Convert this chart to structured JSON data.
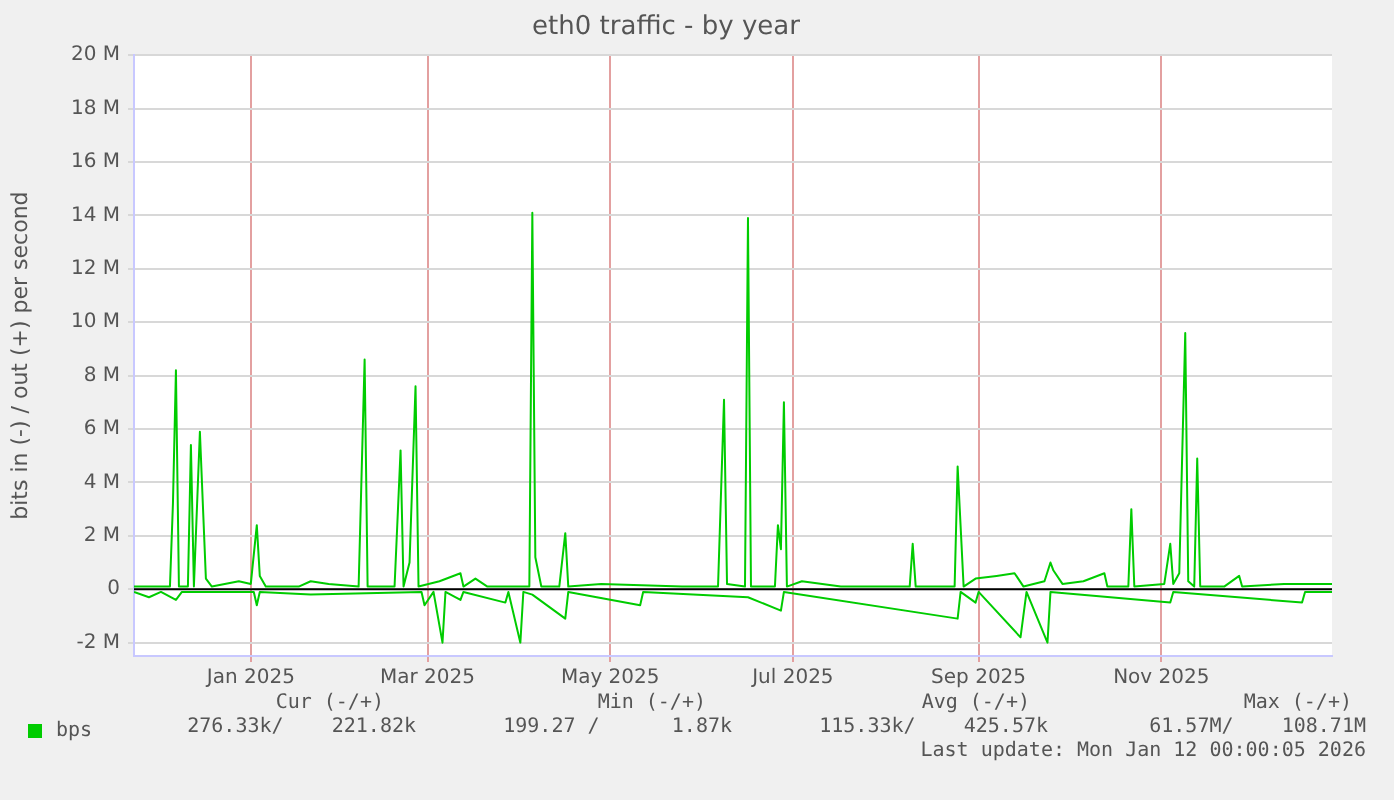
{
  "chart_data": {
    "type": "line",
    "title": "eth0 traffic - by year",
    "ylabel": "bits in (-) / out (+) per second",
    "xlim": [
      "2024-12-08",
      "2026-01-12"
    ],
    "xticks": [
      {
        "value": "2025-01-16",
        "label": "Jan 2025"
      },
      {
        "value": "2025-03-16",
        "label": "Mar 2025"
      },
      {
        "value": "2025-05-16",
        "label": "May 2025"
      },
      {
        "value": "2025-07-16",
        "label": "Jul 2025"
      },
      {
        "value": "2025-09-16",
        "label": "Sep 2025"
      },
      {
        "value": "2025-11-16",
        "label": "Nov 2025"
      }
    ],
    "ylim": [
      -2.5,
      20
    ],
    "yticks": [
      {
        "value": -2,
        "label": "-2 M"
      },
      0,
      {
        "value": 2,
        "label": "2 M"
      },
      {
        "value": 4,
        "label": "4 M"
      },
      {
        "value": 6,
        "label": "6 M"
      },
      {
        "value": 8,
        "label": "8 M"
      },
      {
        "value": 10,
        "label": "10 M"
      },
      {
        "value": 12,
        "label": "12 M"
      },
      {
        "value": 14,
        "label": "14 M"
      },
      {
        "value": 16,
        "label": "16 M"
      },
      {
        "value": 18,
        "label": "18 M"
      },
      {
        "value": 20,
        "label": "20 M"
      }
    ],
    "grid": true,
    "legend": "bottom left",
    "ref_lines": [
      {
        "axis": "y",
        "value": 0,
        "color": "#000000"
      }
    ],
    "series": [
      {
        "name": "bps",
        "color": "#00cc00",
        "x": [
          "2024-12-08",
          "2024-12-17",
          "2024-12-20",
          "2024-12-21",
          "2024-12-22",
          "2024-12-23",
          "2024-12-26",
          "2024-12-27",
          "2024-12-28",
          "2024-12-30",
          "2025-01-01",
          "2025-01-03",
          "2025-01-12",
          "2025-01-16",
          "2025-01-18",
          "2025-01-19",
          "2025-01-21",
          "2025-02-01",
          "2025-02-05",
          "2025-02-11",
          "2025-02-21",
          "2025-02-23",
          "2025-02-24",
          "2025-03-05",
          "2025-03-07",
          "2025-03-08",
          "2025-03-10",
          "2025-03-12",
          "2025-03-13",
          "2025-03-20",
          "2025-03-27",
          "2025-03-28",
          "2025-04-01",
          "2025-04-05",
          "2025-04-19",
          "2025-04-20",
          "2025-04-21",
          "2025-04-23",
          "2025-04-29",
          "2025-05-01",
          "2025-05-02",
          "2025-05-13",
          "2025-06-09",
          "2025-06-21",
          "2025-06-23",
          "2025-06-24",
          "2025-06-30",
          "2025-07-01",
          "2025-07-02",
          "2025-07-10",
          "2025-07-11",
          "2025-07-12",
          "2025-07-13",
          "2025-07-14",
          "2025-07-19",
          "2025-08-01",
          "2025-08-24",
          "2025-08-25",
          "2025-08-26",
          "2025-09-08",
          "2025-09-09",
          "2025-09-11",
          "2025-09-15",
          "2025-09-22",
          "2025-09-28",
          "2025-10-01",
          "2025-10-08",
          "2025-10-10",
          "2025-10-11",
          "2025-10-14",
          "2025-10-21",
          "2025-10-28",
          "2025-10-29",
          "2025-11-05",
          "2025-11-06",
          "2025-11-07",
          "2025-11-17",
          "2025-11-19",
          "2025-11-20",
          "2025-11-22",
          "2025-11-24",
          "2025-11-25",
          "2025-11-27",
          "2025-11-28",
          "2025-11-29",
          "2025-12-07",
          "2025-12-12",
          "2025-12-13",
          "2025-12-27",
          "2026-01-12"
        ],
        "values": [
          0.1,
          0.1,
          0.1,
          3.2,
          8.2,
          0.1,
          0.1,
          5.4,
          0.1,
          5.9,
          0.4,
          0.1,
          0.3,
          0.2,
          2.4,
          0.5,
          0.1,
          0.1,
          0.3,
          0.2,
          0.1,
          8.6,
          0.1,
          0.1,
          5.2,
          0.1,
          1.0,
          7.6,
          0.1,
          0.3,
          0.6,
          0.1,
          0.4,
          0.1,
          0.1,
          14.1,
          1.2,
          0.1,
          0.1,
          2.1,
          0.1,
          0.2,
          0.1,
          0.1,
          7.1,
          0.2,
          0.1,
          13.9,
          0.1,
          0.1,
          2.4,
          1.5,
          7.0,
          0.1,
          0.3,
          0.1,
          0.1,
          1.7,
          0.1,
          0.1,
          4.6,
          0.1,
          0.4,
          0.5,
          0.6,
          0.1,
          0.3,
          1.0,
          0.7,
          0.2,
          0.3,
          0.6,
          0.1,
          0.1,
          3.0,
          0.1,
          0.2,
          1.7,
          0.2,
          0.6,
          9.6,
          0.3,
          0.1,
          4.9,
          0.1,
          0.1,
          0.5,
          0.1,
          0.2,
          0.2
        ]
      },
      {
        "color": "#00cc00",
        "x": [
          "2024-12-08",
          "2024-12-13",
          "2024-12-17",
          "2024-12-22",
          "2024-12-24",
          "2025-01-17",
          "2025-01-18",
          "2025-01-19",
          "2025-02-05",
          "2025-03-14",
          "2025-03-15",
          "2025-03-18",
          "2025-03-21",
          "2025-03-22",
          "2025-03-27",
          "2025-03-28",
          "2025-04-11",
          "2025-04-12",
          "2025-04-16",
          "2025-04-17",
          "2025-04-20",
          "2025-05-01",
          "2025-05-02",
          "2025-05-26",
          "2025-05-27",
          "2025-07-01",
          "2025-07-12",
          "2025-07-13",
          "2025-09-09",
          "2025-09-10",
          "2025-09-15",
          "2025-09-16",
          "2025-09-30",
          "2025-10-02",
          "2025-10-09",
          "2025-10-10",
          "2025-11-19",
          "2025-11-20",
          "2026-01-02",
          "2026-01-03",
          "2026-01-12"
        ],
        "values": [
          -0.1,
          -0.3,
          -0.1,
          -0.4,
          -0.1,
          -0.1,
          -0.6,
          -0.1,
          -0.2,
          -0.1,
          -0.6,
          -0.1,
          -2.0,
          -0.1,
          -0.4,
          -0.1,
          -0.5,
          -0.1,
          -2.0,
          -0.1,
          -0.2,
          -1.1,
          -0.1,
          -0.6,
          -0.1,
          -0.3,
          -0.8,
          -0.1,
          -1.1,
          -0.1,
          -0.5,
          -0.1,
          -1.8,
          -0.1,
          -2.0,
          -0.1,
          -0.5,
          -0.1,
          -0.5,
          -0.1,
          -0.1
        ]
      }
    ],
    "annotations": [
      "Cur (-/+)",
      "Min (-/+)",
      "Avg (-/+)",
      "Max (-/+)",
      "276.33k/    221.82k",
      "199.27 /      1.87k",
      "115.33k/    425.57k",
      "61.57M/    108.71M",
      "Last update: Mon Jan 12 00:00:05 2026"
    ]
  }
}
